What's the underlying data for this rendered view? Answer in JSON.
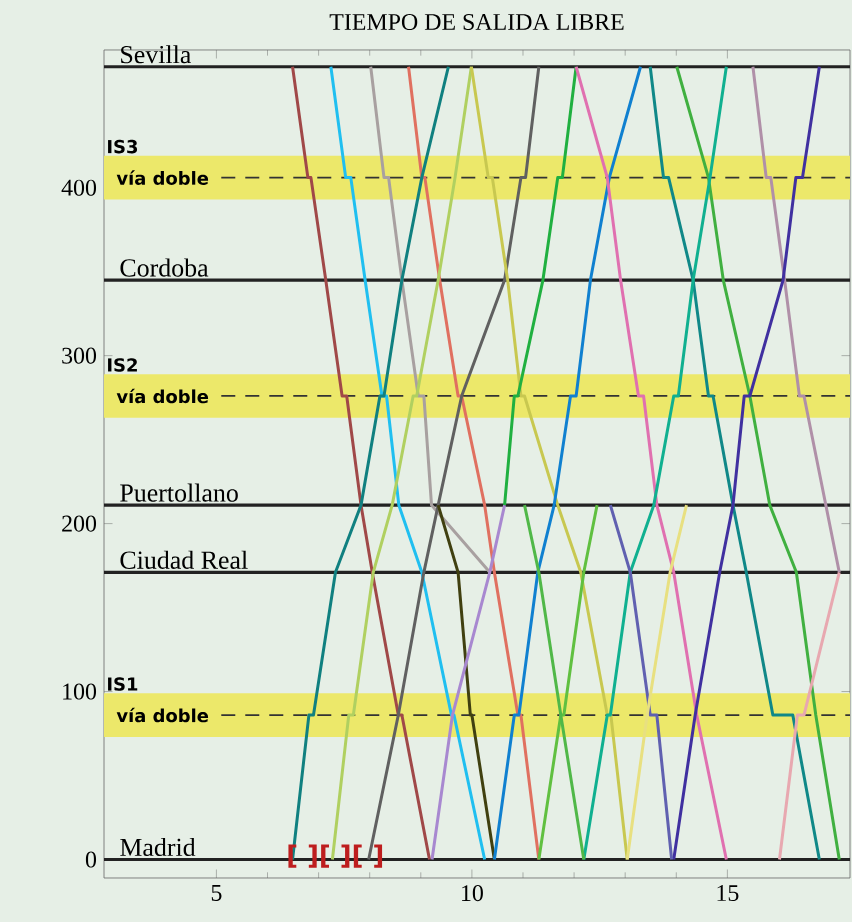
{
  "chart_data": {
    "type": "line",
    "title": "TIEMPO DE SALIDA LIBRE",
    "xlim": [
      2.8,
      17.4
    ],
    "ylim": [
      -11,
      482
    ],
    "xticks": [
      5,
      10,
      15
    ],
    "yticks": [
      0,
      100,
      200,
      300,
      400
    ],
    "grid": false,
    "marker": "none",
    "line_style": "solid",
    "bands": [
      {
        "axis": "y",
        "from": 73,
        "to": 99,
        "label": "IS1",
        "color": "#ece86a"
      },
      {
        "axis": "y",
        "from": 263,
        "to": 289,
        "label": "IS2",
        "color": "#ece86a"
      },
      {
        "axis": "y",
        "from": 393,
        "to": 419,
        "label": "IS3",
        "color": "#ece86a"
      }
    ],
    "ref_lines": [
      {
        "axis": "y",
        "value": 0,
        "label": "Madrid",
        "color": "#222222",
        "line_style": "solid"
      },
      {
        "axis": "y",
        "value": 171,
        "label": "Ciudad Real",
        "color": "#222222",
        "line_style": "solid"
      },
      {
        "axis": "y",
        "value": 211,
        "label": "Puertollano",
        "color": "#222222",
        "line_style": "solid"
      },
      {
        "axis": "y",
        "value": 345,
        "label": "Cordoba",
        "color": "#222222",
        "line_style": "solid"
      },
      {
        "axis": "y",
        "value": 472,
        "label": "Sevilla",
        "color": "#222222",
        "line_style": "solid"
      },
      {
        "axis": "y",
        "value": 86,
        "label": "vía doble",
        "color": "#333333",
        "line_style": "dashed"
      },
      {
        "axis": "y",
        "value": 276,
        "label": "vía doble",
        "color": "#333333",
        "line_style": "dashed"
      },
      {
        "axis": "y",
        "value": 406,
        "label": "vía doble",
        "color": "#333333",
        "line_style": "dashed"
      }
    ],
    "annotations": [
      "[ ][ ][ ]"
    ],
    "series": [
      {
        "color": "#a04848",
        "x": [
          6.49,
          6.79,
          6.85,
          7.14,
          7.46,
          7.55,
          7.83,
          8.05,
          8.56,
          8.63,
          9.17
        ],
        "values": [
          472,
          406,
          406,
          345,
          276,
          276,
          211,
          171,
          86,
          86,
          0
        ]
      },
      {
        "color": "#20bff0",
        "x": [
          7.24,
          7.53,
          7.63,
          7.91,
          8.24,
          8.33,
          8.57,
          9.02,
          9.6,
          9.65,
          10.25
        ],
        "values": [
          472,
          406,
          406,
          345,
          276,
          276,
          211,
          171,
          86,
          86,
          0
        ]
      },
      {
        "color": "#a8a0a0",
        "x": [
          8.02,
          8.28,
          8.37,
          8.63,
          8.95,
          9.06,
          9.21,
          10.35
        ],
        "values": [
          472,
          406,
          406,
          345,
          276,
          276,
          211,
          171
        ]
      },
      {
        "color": "#e07060",
        "x": [
          8.76,
          9.02,
          9.08,
          9.37,
          9.73,
          9.8,
          10.25,
          10.44,
          10.9,
          10.96,
          11.31
        ],
        "values": [
          472,
          406,
          406,
          345,
          276,
          276,
          211,
          171,
          86,
          86,
          0
        ]
      },
      {
        "color": "#606060",
        "x": [
          7.98,
          8.56,
          9.06,
          9.34,
          9.8,
          10.64,
          10.96,
          11.05,
          11.31
        ],
        "values": [
          0,
          86,
          171,
          211,
          276,
          345,
          406,
          406,
          472
        ]
      },
      {
        "color": "#404010",
        "x": [
          9.34,
          9.73,
          9.97,
          10.0,
          10.44
        ],
        "values": [
          211,
          171,
          86,
          86,
          0
        ]
      },
      {
        "color": "#108080",
        "x": [
          6.49,
          6.81,
          6.9,
          7.33,
          7.83,
          8.2,
          8.28,
          8.63,
          9.02,
          9.54
        ],
        "values": [
          0,
          86,
          86,
          171,
          211,
          276,
          276,
          345,
          406,
          472
        ]
      },
      {
        "color": "#b0d060",
        "x": [
          7.27,
          7.59,
          7.68,
          8.07,
          8.44,
          8.85,
          8.92,
          9.34,
          9.67,
          9.99
        ],
        "values": [
          0,
          86,
          86,
          171,
          211,
          276,
          276,
          345,
          406,
          472
        ]
      },
      {
        "color": "#c8c850",
        "x": [
          9.99,
          10.32,
          10.4,
          10.7,
          10.96,
          11.03,
          11.68,
          12.13,
          12.65,
          12.72,
          13.04
        ],
        "values": [
          472,
          406,
          406,
          345,
          276,
          276,
          211,
          171,
          86,
          86,
          0
        ]
      },
      {
        "color": "#a888d0",
        "x": [
          9.22,
          9.62,
          10.35,
          10.64
        ],
        "values": [
          0,
          86,
          171,
          211
        ]
      },
      {
        "color": "#1080d0",
        "x": [
          10.44,
          10.83,
          10.92,
          11.29,
          11.61,
          11.93,
          12.04,
          12.32,
          12.69,
          13.3
        ],
        "values": [
          0,
          86,
          86,
          171,
          211,
          276,
          276,
          345,
          406,
          472
        ]
      },
      {
        "color": "#20b040",
        "x": [
          10.64,
          10.83,
          10.9,
          11.39,
          11.68,
          11.77,
          12.04
        ],
        "values": [
          211,
          276,
          276,
          345,
          406,
          406,
          472
        ]
      },
      {
        "color": "#e070b0",
        "x": [
          12.04,
          12.65,
          12.91,
          13.26,
          13.36,
          13.62,
          13.95,
          14.4,
          14.98
        ],
        "values": [
          472,
          406,
          345,
          276,
          276,
          211,
          171,
          86,
          0
        ]
      },
      {
        "color": "#108888",
        "x": [
          13.49,
          13.75,
          13.85,
          14.33,
          14.63,
          14.72,
          15.11,
          15.37,
          15.89,
          16.28,
          16.8
        ],
        "values": [
          472,
          406,
          406,
          345,
          276,
          276,
          211,
          171,
          86,
          86,
          0
        ]
      },
      {
        "color": "#40b040",
        "x": [
          14.01,
          14.63,
          14.92,
          15.44,
          15.83,
          16.35,
          16.73,
          17.19
        ],
        "values": [
          472,
          406,
          345,
          276,
          211,
          171,
          86,
          0
        ]
      },
      {
        "color": "#10b090",
        "x": [
          12.19,
          12.65,
          12.71,
          13.1,
          13.56,
          13.95,
          14.04,
          14.33,
          14.66,
          14.98
        ],
        "values": [
          0,
          86,
          86,
          171,
          211,
          276,
          276,
          345,
          406,
          472
        ]
      },
      {
        "color": "#b090a8",
        "x": [
          15.5,
          15.76,
          15.85,
          16.12,
          16.41,
          16.5,
          17.19
        ],
        "values": [
          472,
          406,
          406,
          345,
          276,
          276,
          171
        ]
      },
      {
        "color": "#4030a0",
        "x": [
          13.95,
          14.37,
          14.85,
          15.11,
          15.33,
          15.44,
          16.09,
          16.34,
          16.47,
          16.8
        ],
        "values": [
          0,
          86,
          171,
          211,
          276,
          276,
          345,
          406,
          406,
          472
        ]
      },
      {
        "color": "#6060b0",
        "x": [
          12.71,
          13.1,
          13.49,
          13.62,
          13.91
        ],
        "values": [
          211,
          171,
          86,
          86,
          0
        ]
      },
      {
        "color": "#e8e080",
        "x": [
          13.04,
          13.43,
          13.88,
          14.2
        ],
        "values": [
          0,
          86,
          171,
          211
        ]
      },
      {
        "color": "#60c040",
        "x": [
          11.31,
          11.74,
          11.8,
          12.19,
          12.45
        ],
        "values": [
          0,
          86,
          86,
          171,
          211
        ]
      },
      {
        "color": "#50b848",
        "x": [
          11.03,
          11.31,
          11.74,
          12.19
        ],
        "values": [
          211,
          171,
          86,
          0
        ]
      },
      {
        "color": "#e8a8b0",
        "x": [
          16.02,
          16.37,
          16.5,
          17.19
        ],
        "values": [
          0,
          86,
          86,
          171
        ]
      }
    ]
  }
}
